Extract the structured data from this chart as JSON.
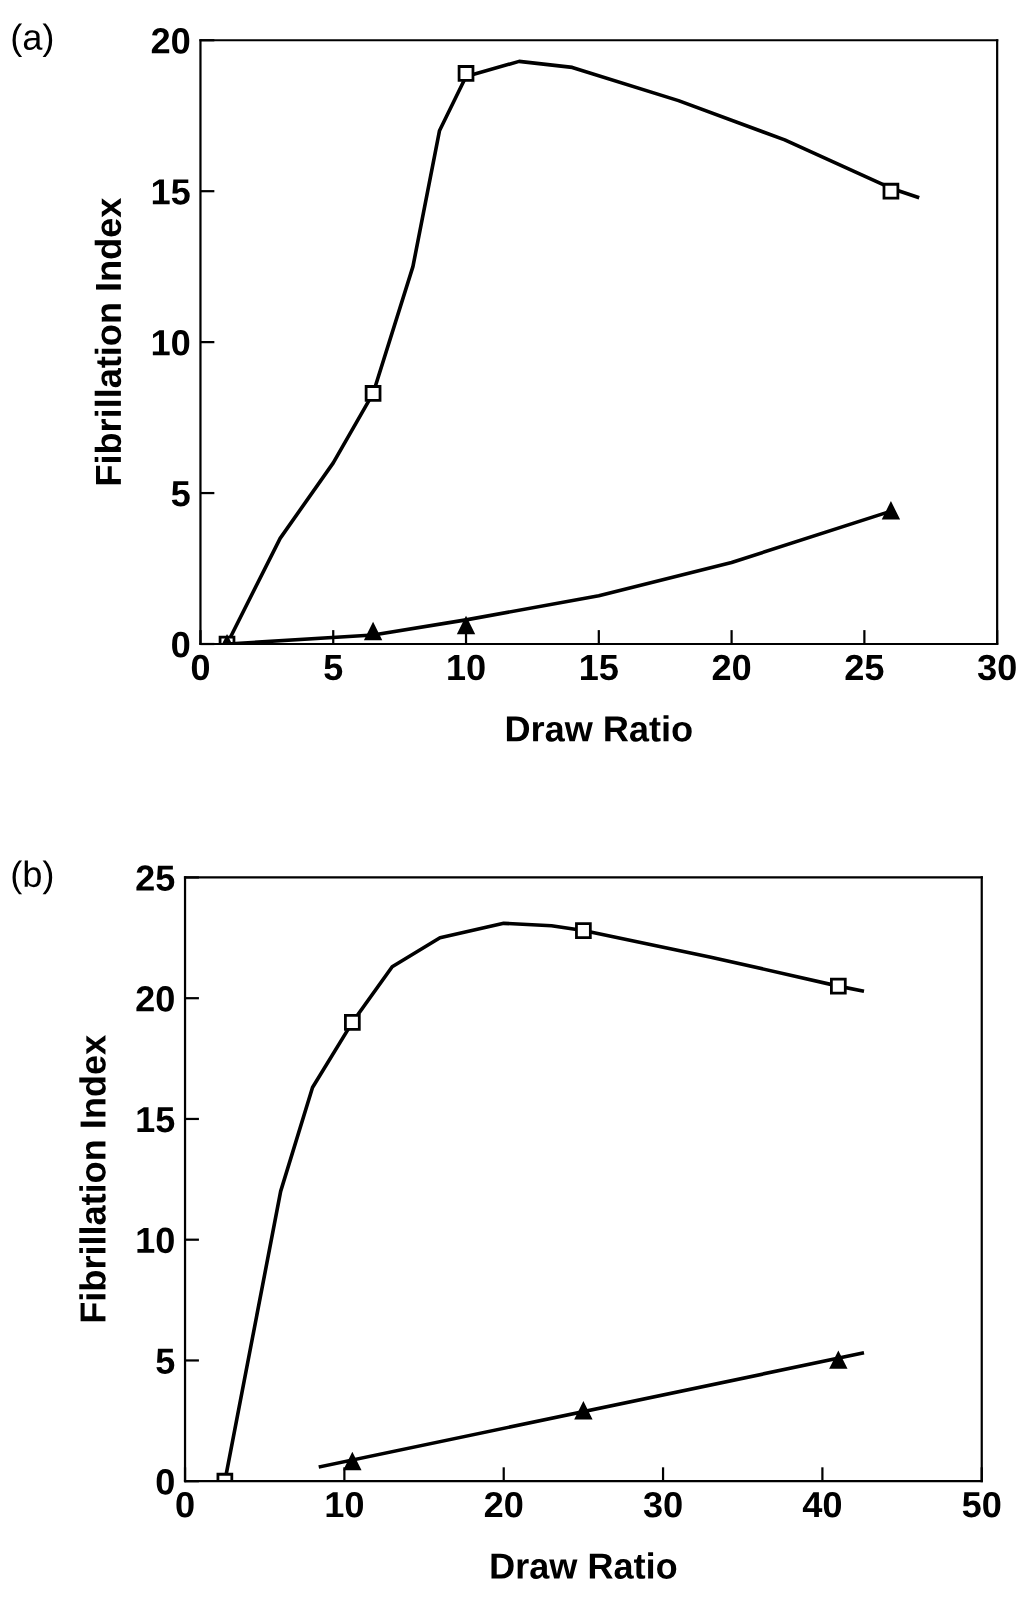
{
  "chart_data": [
    {
      "type": "scatter",
      "title": "(a)",
      "xlabel": "Draw Ratio",
      "ylabel": "Fibrillation Index",
      "xlim": [
        0,
        30
      ],
      "ylim": [
        0,
        20
      ],
      "xticks": [
        0,
        5,
        10,
        15,
        20,
        25,
        30
      ],
      "yticks": [
        0,
        5,
        10,
        15,
        20
      ],
      "series": [
        {
          "type": "line",
          "color": "#000000",
          "x": [
            1,
            3,
            5,
            6.5,
            8,
            9,
            10,
            12,
            14,
            18,
            22,
            26,
            27
          ],
          "values": [
            0,
            3.5,
            6,
            8.3,
            12.5,
            17,
            18.8,
            19.3,
            19.1,
            18,
            16.7,
            15.1,
            14.8
          ],
          "marker": "none"
        },
        {
          "color": "#000000",
          "x": [
            1,
            6.5,
            10,
            26
          ],
          "values": [
            0,
            8.3,
            18.9,
            15
          ],
          "marker": "square"
        },
        {
          "type": "line",
          "color": "#000000",
          "x": [
            1,
            6.5,
            10,
            15,
            20,
            26
          ],
          "values": [
            0,
            0.3,
            0.8,
            1.6,
            2.7,
            4.4
          ],
          "marker": "none"
        },
        {
          "color": "#000000",
          "x": [
            1,
            6.5,
            10,
            26
          ],
          "values": [
            0,
            0.4,
            0.6,
            4.4
          ],
          "marker": "triangle"
        }
      ]
    },
    {
      "type": "scatter",
      "title": "(b)",
      "xlabel": "Draw Ratio",
      "ylabel": "Fibrillation Index",
      "xlim": [
        0,
        50
      ],
      "ylim": [
        0,
        25
      ],
      "xticks": [
        0,
        10,
        20,
        30,
        40,
        50
      ],
      "yticks": [
        0,
        5,
        10,
        15,
        20,
        25
      ],
      "series": [
        {
          "type": "line",
          "color": "#000000",
          "x": [
            2.5,
            6,
            8,
            10.5,
            13,
            16,
            20,
            23,
            25,
            33,
            41,
            42.5
          ],
          "values": [
            0,
            12,
            16.3,
            19,
            21.3,
            22.5,
            23.1,
            23,
            22.8,
            21.7,
            20.5,
            20.3
          ],
          "marker": "none"
        },
        {
          "color": "#000000",
          "x": [
            2.5,
            10.5,
            25,
            41
          ],
          "values": [
            0,
            19,
            22.8,
            20.5
          ],
          "marker": "square"
        },
        {
          "type": "line",
          "color": "#000000",
          "x": [
            8.5,
            42.5
          ],
          "values": [
            0.6,
            5.3
          ],
          "marker": "none"
        },
        {
          "color": "#000000",
          "x": [
            10.5,
            25,
            41
          ],
          "values": [
            0.8,
            2.9,
            5
          ],
          "marker": "triangle"
        }
      ]
    }
  ]
}
